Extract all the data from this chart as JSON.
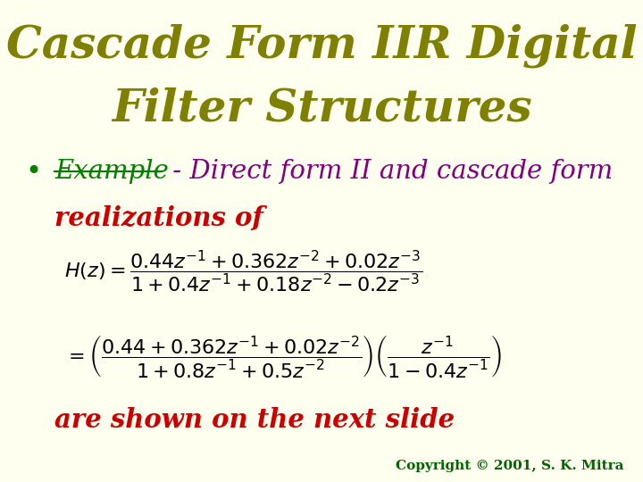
{
  "background_color": "#FFFFF0",
  "title_line1": "Cascade Form IIR Digital",
  "title_line2": "Filter Structures",
  "title_color": "#808000",
  "title_fontsize": 36,
  "bullet_example_color": "#008000",
  "bullet_text_color": "#800080",
  "bullet_red_color": "#CC0000",
  "formula_color": "#000000",
  "copyright_color": "#006400",
  "copyright_text": "Copyright © 2001, S. K. Mitra"
}
